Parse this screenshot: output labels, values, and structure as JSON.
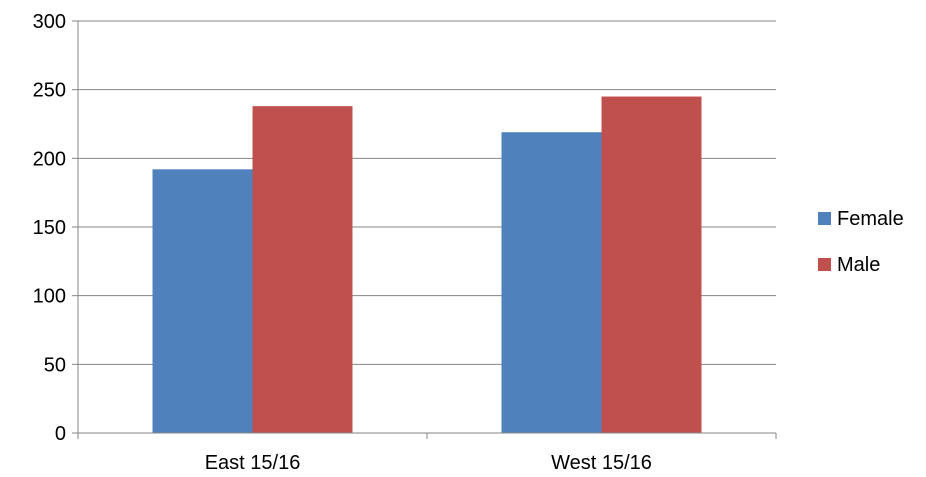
{
  "chart_data": {
    "type": "bar",
    "title": "",
    "xlabel": "",
    "ylabel": "",
    "categories": [
      "East 15/16",
      "West 15/16"
    ],
    "series": [
      {
        "name": "Female",
        "values": [
          192,
          219
        ],
        "color": "#4F81BD"
      },
      {
        "name": "Male",
        "values": [
          238,
          245
        ],
        "color": "#C0504D"
      }
    ],
    "ylim": [
      0,
      300
    ],
    "yticks": [
      0,
      50,
      100,
      150,
      200,
      250,
      300
    ],
    "grid": true,
    "legend_position": "right"
  }
}
